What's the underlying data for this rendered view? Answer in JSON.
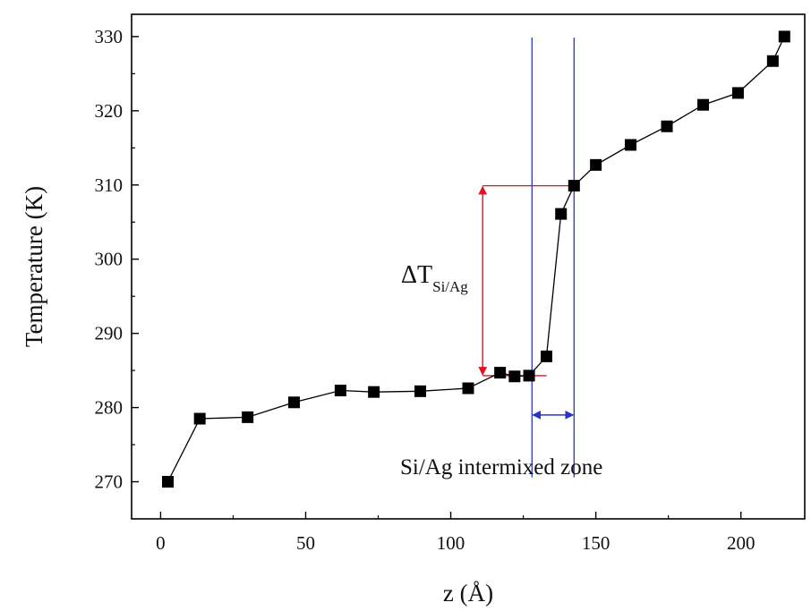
{
  "chart_data": {
    "type": "scatter",
    "xlabel": "z (Å)",
    "ylabel": "Temperature (K)",
    "xlim": [
      -10,
      222
    ],
    "ylim": [
      265,
      333
    ],
    "x_ticks": [
      0,
      50,
      100,
      150,
      200
    ],
    "y_ticks": [
      270,
      280,
      290,
      300,
      310,
      320,
      330
    ],
    "grid": false,
    "series": [
      {
        "marker": "square",
        "connected": true,
        "color": "#000000",
        "x": [
          2.5,
          13.5,
          30,
          46,
          62,
          73.5,
          89.5,
          106,
          117,
          122,
          127,
          133,
          138,
          142.5,
          150,
          162,
          174.5,
          187,
          199,
          211,
          215
        ],
        "y": [
          270,
          278.5,
          278.7,
          280.7,
          282.3,
          282.1,
          282.2,
          282.6,
          284.7,
          284.2,
          284.3,
          286.9,
          306.1,
          309.9,
          312.7,
          315.4,
          317.9,
          320.8,
          322.4,
          326.7,
          330
        ]
      }
    ],
    "annotations": {
      "delta_t": {
        "symbol": "ΔT",
        "subscript": "Si/Ag",
        "color": "#e0141e",
        "arrow_x": 111,
        "upper_temp": 309.9,
        "lower_temp": 284.3,
        "line_x_range": [
          111,
          143
        ],
        "lower_line_x_range": [
          111,
          133
        ]
      },
      "zone": {
        "label": "Si/Ag intermixed zone",
        "color": "#2a35c8",
        "left_x": 128,
        "right_x": 142.5,
        "arrow_temp": 279.0
      }
    }
  }
}
